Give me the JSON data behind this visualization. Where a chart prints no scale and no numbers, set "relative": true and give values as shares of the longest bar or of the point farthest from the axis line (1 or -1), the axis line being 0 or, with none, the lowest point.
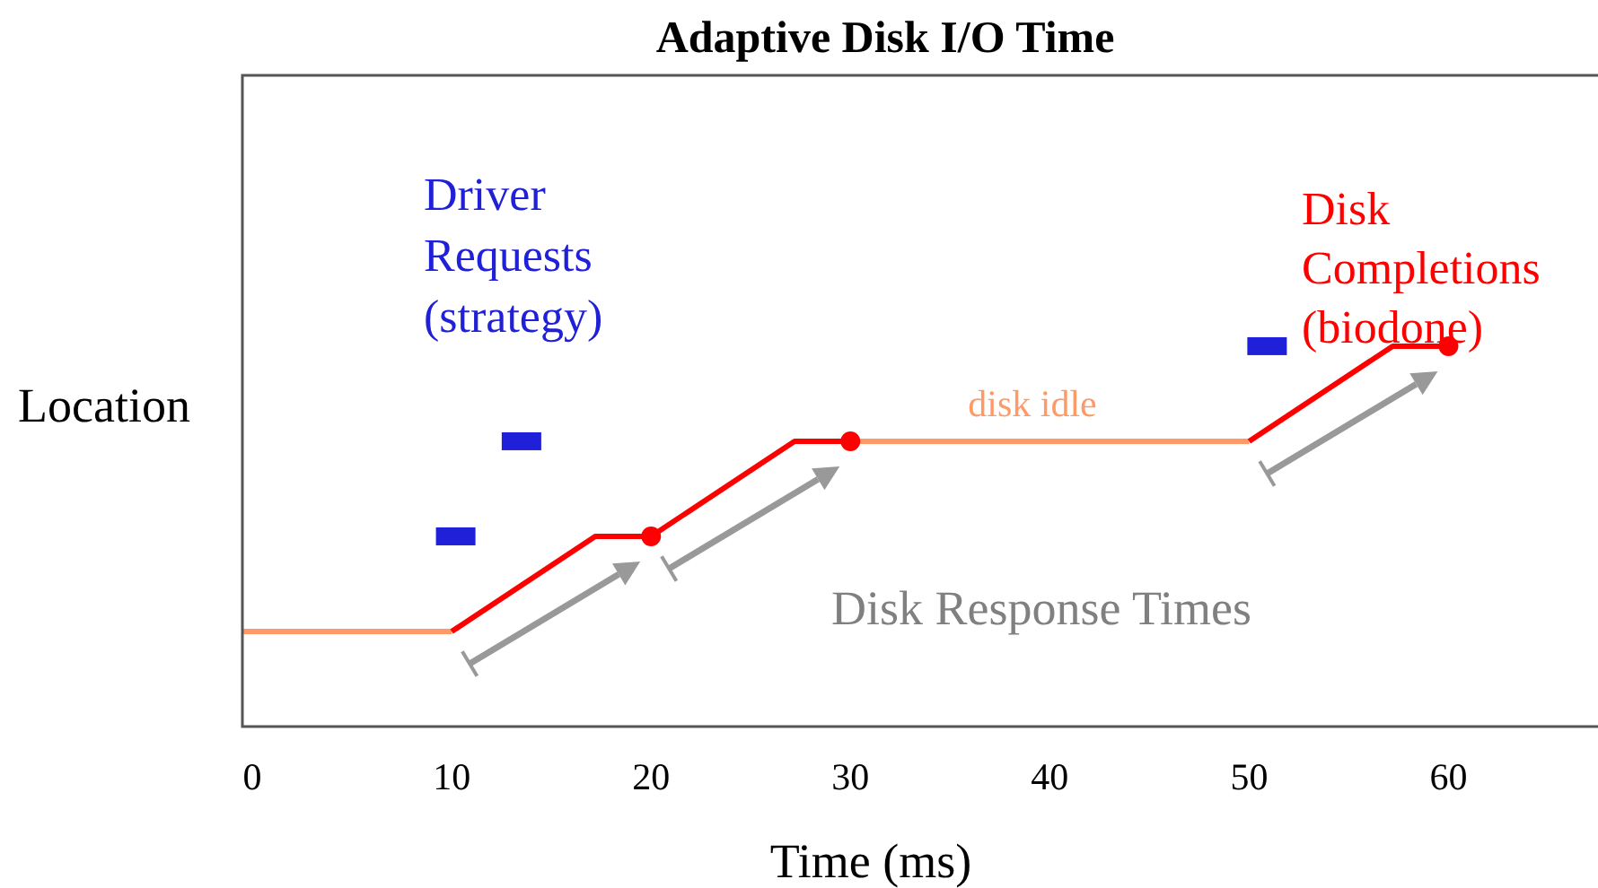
{
  "chart_data": {
    "type": "line",
    "title": "Adaptive Disk I/O Time",
    "xlabel": "Time (ms)",
    "ylabel": "Location",
    "relative": true,
    "xlim": [
      -0.5,
      67.5
    ],
    "xticks": [
      0,
      10,
      20,
      30,
      40,
      50,
      60
    ],
    "tick_labels": "x",
    "grid": false,
    "legend": false,
    "annotations": [
      "Disk Response Times"
    ],
    "series": [
      {
        "name": "disk idle",
        "color": "#ff9966",
        "x": [
          -0.5,
          10,
          20,
          30,
          50
        ],
        "values": [
          0.25,
          0.25,
          null,
          0.75,
          0.75
        ],
        "marker": "none"
      },
      {
        "color": "#ff0000",
        "x": [
          10,
          17.2,
          20,
          27.2,
          30,
          40,
          50,
          57.2,
          60
        ],
        "values": [
          0.25,
          0.5,
          0.5,
          0.75,
          0.75,
          null,
          0.75,
          1,
          1
        ],
        "marker": "none"
      },
      {
        "name": "Disk Completions (biodone)",
        "type": "scatter",
        "color": "#ff0000",
        "x": [
          20,
          30,
          60
        ],
        "values": [
          0.5,
          0.75,
          1
        ],
        "marker": "circle"
      },
      {
        "name": "Driver Requests (strategy)",
        "type": "scatter",
        "color": "#2020d8",
        "x": [
          10.2,
          13.5,
          50.9
        ],
        "values": [
          0.5,
          0.75,
          1
        ],
        "marker": "square"
      }
    ]
  }
}
